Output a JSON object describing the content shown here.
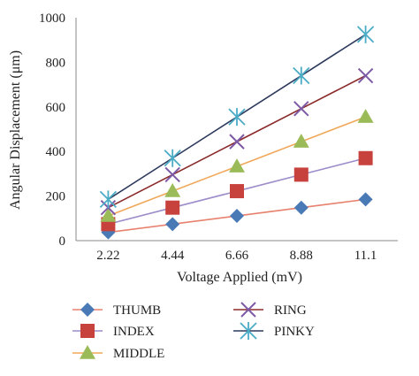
{
  "chart_data": {
    "type": "line",
    "title": "",
    "xlabel": "Voltage Applied (mV)",
    "ylabel": "Angular Displacement (μm)",
    "categories": [
      "2.22",
      "4.44",
      "6.66",
      "8.88",
      "11.1"
    ],
    "ylim": [
      0,
      1000
    ],
    "yticks": [
      "0",
      "200",
      "400",
      "600",
      "800",
      "1000"
    ],
    "grid": false,
    "legend_position": "bottom",
    "series": [
      {
        "name": "THUMB",
        "values": [
          37,
          74,
          111,
          148,
          185
        ],
        "line_color": "#e8806e",
        "marker_color": "#4a7ab5",
        "marker": "diamond"
      },
      {
        "name": "INDEX",
        "values": [
          74,
          148,
          222,
          296,
          370
        ],
        "line_color": "#9d8cc9",
        "marker_color": "#c8423d",
        "marker": "square"
      },
      {
        "name": "MIDDLE",
        "values": [
          111,
          222,
          333,
          444,
          555
        ],
        "line_color": "#f0a85a",
        "marker_color": "#9bbb59",
        "marker": "triangle"
      },
      {
        "name": "RING",
        "values": [
          148,
          296,
          444,
          592,
          740
        ],
        "line_color": "#8a2a2a",
        "marker_color": "#7d5aa6",
        "marker": "x"
      },
      {
        "name": "PINKY",
        "values": [
          185,
          370,
          555,
          740,
          925
        ],
        "line_color": "#2d3a5c",
        "marker_color": "#4bacc6",
        "marker": "asterisk"
      }
    ]
  }
}
